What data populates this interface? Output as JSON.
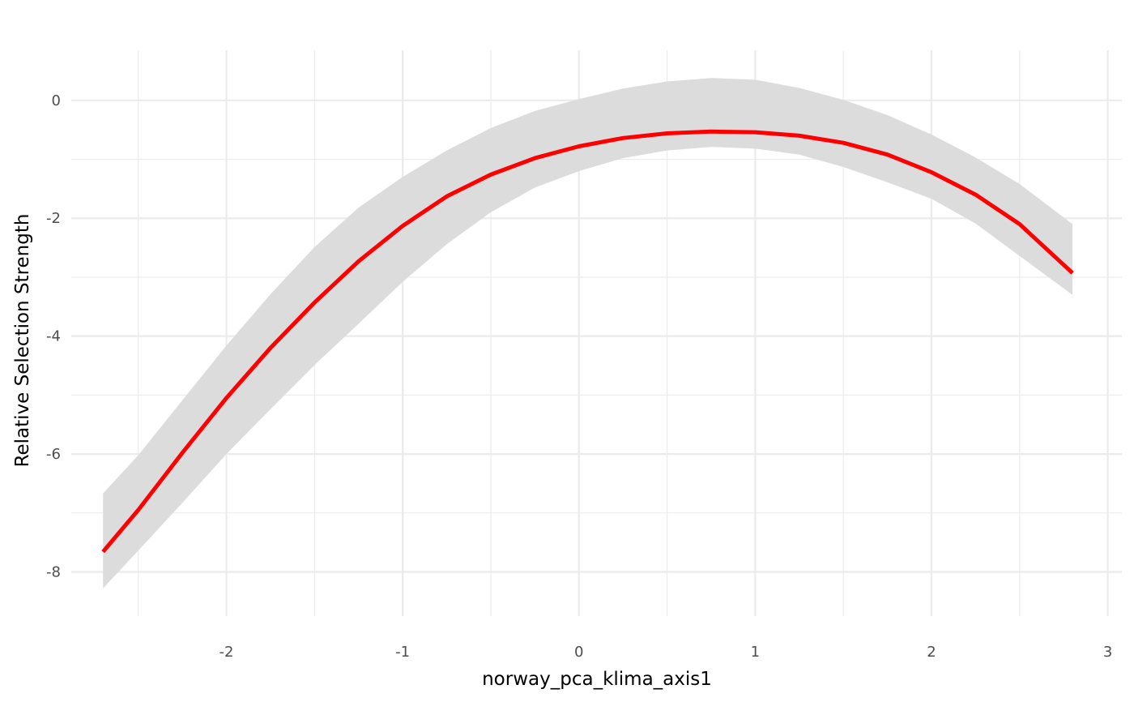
{
  "chart_data": {
    "type": "line",
    "title": "",
    "xlabel": "norway_pca_klima_axis1",
    "ylabel": "Relative Selection Strength",
    "xlim": [
      -2.88,
      3.08
    ],
    "ylim": [
      -8.75,
      0.85
    ],
    "x_ticks": [
      -2,
      -1,
      0,
      1,
      2,
      3
    ],
    "y_ticks": [
      -8,
      -6,
      -4,
      -2,
      0
    ],
    "x_minor_ticks": [
      -2.5,
      -1.5,
      -0.5,
      0.5,
      1.5,
      2.5
    ],
    "y_minor_ticks": [
      -7,
      -5,
      -3,
      -1
    ],
    "grid": true,
    "legend": "none",
    "series": [
      {
        "kind": "fit",
        "color": "#ff0000",
        "x": [
          -2.7,
          -2.5,
          -2.25,
          -2.0,
          -1.75,
          -1.5,
          -1.25,
          -1.0,
          -0.75,
          -0.5,
          -0.25,
          0.0,
          0.25,
          0.5,
          0.75,
          1.0,
          1.25,
          1.5,
          1.75,
          2.0,
          2.25,
          2.5,
          2.8
        ],
        "y": [
          -7.66,
          -6.95,
          -5.98,
          -5.05,
          -4.2,
          -3.43,
          -2.73,
          -2.13,
          -1.63,
          -1.26,
          -0.98,
          -0.78,
          -0.64,
          -0.56,
          -0.53,
          -0.54,
          -0.6,
          -0.72,
          -0.92,
          -1.22,
          -1.6,
          -2.1,
          -2.93
        ]
      }
    ],
    "ribbon": {
      "color": "#dcdcdc",
      "x": [
        -2.7,
        -2.5,
        -2.25,
        -2.0,
        -1.75,
        -1.5,
        -1.25,
        -1.0,
        -0.75,
        -0.5,
        -0.25,
        0.0,
        0.25,
        0.5,
        0.75,
        1.0,
        1.25,
        1.5,
        1.75,
        2.0,
        2.25,
        2.5,
        2.8
      ],
      "upper": [
        -6.67,
        -6.02,
        -5.09,
        -4.16,
        -3.29,
        -2.49,
        -1.82,
        -1.3,
        -0.85,
        -0.47,
        -0.18,
        0.02,
        0.2,
        0.32,
        0.38,
        0.35,
        0.21,
        0.01,
        -0.25,
        -0.58,
        -0.97,
        -1.42,
        -2.1
      ],
      "lower": [
        -8.28,
        -7.64,
        -6.83,
        -6.0,
        -5.24,
        -4.49,
        -3.79,
        -3.08,
        -2.44,
        -1.9,
        -1.48,
        -1.2,
        -0.98,
        -0.85,
        -0.79,
        -0.82,
        -0.92,
        -1.13,
        -1.39,
        -1.67,
        -2.09,
        -2.64,
        -3.3
      ]
    }
  }
}
